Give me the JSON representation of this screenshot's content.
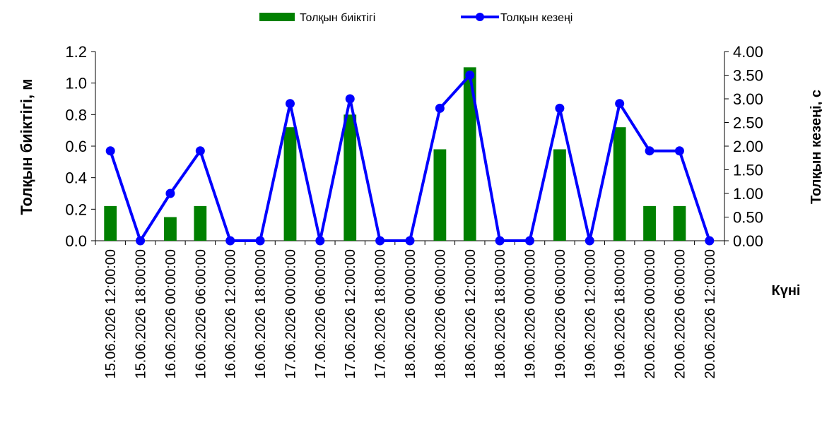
{
  "chart_data": {
    "type": "bar+line",
    "categories": [
      "15.06.2026 12:00:00",
      "15.06.2026 18:00:00",
      "16.06.2026 00:00:00",
      "16.06.2026 06:00:00",
      "16.06.2026 12:00:00",
      "16.06.2026 18:00:00",
      "17.06.2026 00:00:00",
      "17.06.2026 06:00:00",
      "17.06.2026 12:00:00",
      "17.06.2026 18:00:00",
      "18.06.2026 00:00:00",
      "18.06.2026 06:00:00",
      "18.06.2026 12:00:00",
      "18.06.2026 18:00:00",
      "19.06.2026 00:00:00",
      "19.06.2026 06:00:00",
      "19.06.2026 12:00:00",
      "19.06.2026 18:00:00",
      "20.06.2026 00:00:00",
      "20.06.2026 06:00:00",
      "20.06.2026 12:00:00"
    ],
    "series": [
      {
        "name": "Толқын биіктігі",
        "type": "bar",
        "axis": "left",
        "color": "#008000",
        "values": [
          0.22,
          0,
          0.15,
          0.22,
          0,
          0,
          0.72,
          0,
          0.8,
          0,
          0,
          0.58,
          1.1,
          0,
          0,
          0.58,
          0,
          0.72,
          0.22,
          0.22,
          0
        ]
      },
      {
        "name": "Толқын кезеңі",
        "type": "line",
        "axis": "right",
        "color": "#0000FF",
        "values": [
          1.9,
          0,
          1.0,
          1.9,
          0,
          0,
          2.9,
          0,
          3.0,
          0,
          0,
          2.8,
          3.5,
          0,
          0,
          2.8,
          0,
          2.9,
          1.9,
          1.9,
          0
        ]
      }
    ],
    "y_left": {
      "label": "Толқын биіктігі, м",
      "range": [
        0,
        1.2
      ],
      "ticks": [
        "0.0",
        "0.2",
        "0.4",
        "0.6",
        "0.8",
        "1.0",
        "1.2"
      ]
    },
    "y_right": {
      "label": "Толқын кезеңі, с",
      "range": [
        0,
        4
      ],
      "ticks": [
        "0.00",
        "0.50",
        "1.00",
        "1.50",
        "2.00",
        "2.50",
        "3.00",
        "3.50",
        "4.00"
      ]
    },
    "xlabel": "Күні",
    "grid": false,
    "legend_position": "top"
  }
}
